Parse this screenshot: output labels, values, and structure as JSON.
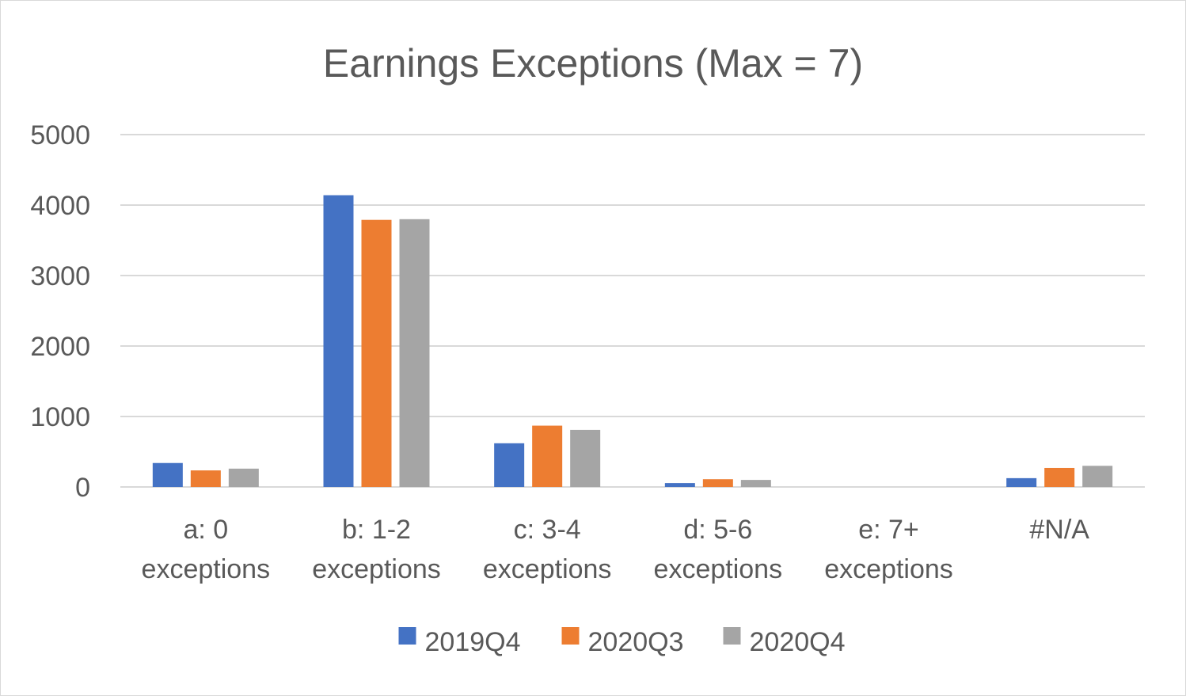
{
  "chart_data": {
    "type": "bar",
    "title": "Earnings Exceptions (Max = 7)",
    "xlabel": "",
    "ylabel": "",
    "ylim": [
      0,
      5000
    ],
    "yticks": [
      0,
      1000,
      2000,
      3000,
      4000,
      5000
    ],
    "categories": [
      [
        "a: 0",
        "exceptions"
      ],
      [
        "b: 1-2",
        "exceptions"
      ],
      [
        "c: 3-4",
        "exceptions"
      ],
      [
        "d: 5-6",
        "exceptions"
      ],
      [
        "e: 7+",
        "exceptions"
      ],
      [
        "#N/A"
      ]
    ],
    "series": [
      {
        "name": "2019Q4",
        "color": "#4472c4",
        "values": [
          340,
          4140,
          620,
          55,
          0,
          125
        ]
      },
      {
        "name": "2020Q3",
        "color": "#ed7d31",
        "values": [
          235,
          3790,
          870,
          110,
          0,
          270
        ]
      },
      {
        "name": "2020Q4",
        "color": "#a5a5a5",
        "values": [
          260,
          3800,
          810,
          100,
          0,
          300
        ]
      }
    ],
    "grid": true,
    "legend": "bottom"
  }
}
